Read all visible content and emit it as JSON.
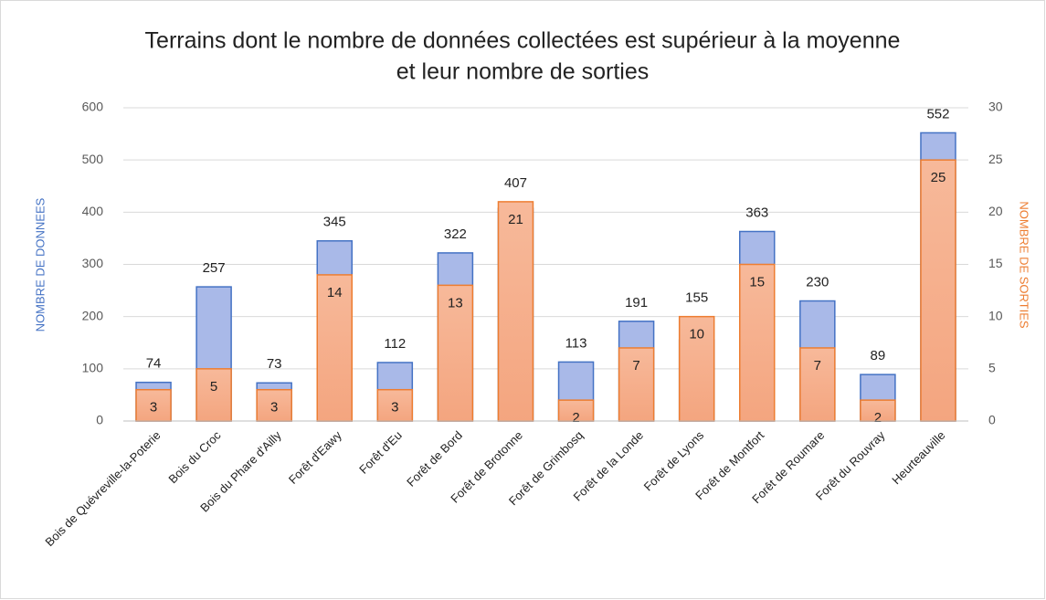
{
  "chart_data": {
    "type": "bar",
    "title": [
      "Terrains dont le nombre de données collectées est supérieur à la moyenne",
      "et leur nombre de sorties"
    ],
    "ylabel": "NOMBRE DE DONNEES",
    "y2label": "NOMBRE DE SORTIES",
    "categories": [
      "Bois de Quévreville-la-Poterie",
      "Bois du Croc",
      "Bois du Phare d'Ailly",
      "Forêt d'Eawy",
      "Forêt d'Eu",
      "Forêt de Bord",
      "Forêt de Brotonne",
      "Forêt de Grimbosq",
      "Forêt de la Londe",
      "Forêt de Lyons",
      "Forêt de Montfort",
      "Forêt de Roumare",
      "Forêt du Rouvray",
      "Heurteauville"
    ],
    "series": [
      {
        "name": "Nombre de données",
        "color": "#4472c4",
        "values": [
          74,
          257,
          73,
          345,
          112,
          322,
          407,
          113,
          191,
          155,
          363,
          230,
          89,
          552
        ]
      },
      {
        "name": "Nombre de sorties",
        "color": "#ed7d31",
        "axis": "y2",
        "values": [
          3,
          5,
          3,
          14,
          3,
          13,
          21,
          2,
          7,
          10,
          15,
          7,
          2,
          25
        ]
      }
    ],
    "ylim": [
      0,
      600
    ],
    "yticks": [
      0,
      100,
      200,
      300,
      400,
      500,
      600
    ],
    "y2lim": [
      0,
      30
    ],
    "y2ticks": [
      0,
      5,
      10,
      15,
      20,
      25,
      30
    ],
    "grid": true
  }
}
